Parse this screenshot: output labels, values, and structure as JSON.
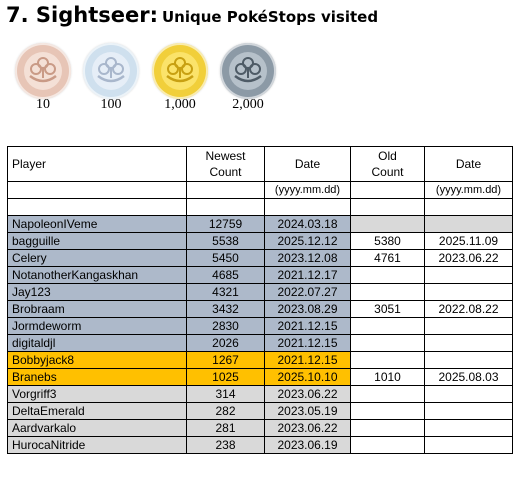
{
  "title": {
    "number_name": "7. Sightseer:",
    "subtitle": "Unique PokéStops visited"
  },
  "medals": [
    {
      "label": "10",
      "tier": "bronze",
      "ring": "#e7c5b6",
      "fill": "#f4e0d6",
      "icon": "#c99a86"
    },
    {
      "label": "100",
      "tier": "silver",
      "ring": "#cfe0ee",
      "fill": "#e6eef7",
      "icon": "#a9b7cc"
    },
    {
      "label": "1,000",
      "tier": "gold",
      "ring": "#f1cf3a",
      "fill": "#fbe36a",
      "icon": "#c8a012"
    },
    {
      "label": "2,000",
      "tier": "platinum",
      "ring": "#8c9aa6",
      "fill": "#b6c1ca",
      "icon": "#4e5b66"
    }
  ],
  "table": {
    "headers": {
      "player": "Player",
      "newest_count_1": "Newest",
      "newest_count_2": "Count",
      "date": "Date",
      "old_count_1": "Old",
      "old_count_2": "Count",
      "date2": "Date"
    },
    "date_format": "(yyyy.mm.dd)",
    "colors": {
      "blue": "#adb9ca",
      "orange": "#ffc000",
      "gray": "#d9d9d9",
      "white": "#ffffff"
    },
    "rows": [
      {
        "player": "NapoleonIVeme",
        "newest": "12759",
        "date": "2024.03.18",
        "old": "",
        "old_date": "",
        "color": "blue",
        "old_color": "gray"
      },
      {
        "player": "bagguille",
        "newest": "5538",
        "date": "2025.12.12",
        "old": "5380",
        "old_date": "2025.11.09",
        "color": "blue",
        "old_color": "white"
      },
      {
        "player": "Celery",
        "newest": "5450",
        "date": "2023.12.08",
        "old": "4761",
        "old_date": "2023.06.22",
        "color": "blue",
        "old_color": "white"
      },
      {
        "player": "NotanotherKangaskhan",
        "newest": "4685",
        "date": "2021.12.17",
        "old": "",
        "old_date": "",
        "color": "blue",
        "old_color": "white"
      },
      {
        "player": "Jay123",
        "newest": "4321",
        "date": "2022.07.27",
        "old": "",
        "old_date": "",
        "color": "blue",
        "old_color": "white"
      },
      {
        "player": "Brobraam",
        "newest": "3432",
        "date": "2023.08.29",
        "old": "3051",
        "old_date": "2022.08.22",
        "color": "blue",
        "old_color": "white"
      },
      {
        "player": "Jormdeworm",
        "newest": "2830",
        "date": "2021.12.15",
        "old": "",
        "old_date": "",
        "color": "blue",
        "old_color": "white"
      },
      {
        "player": "digitaldjl",
        "newest": "2026",
        "date": "2021.12.15",
        "old": "",
        "old_date": "",
        "color": "blue",
        "old_color": "white"
      },
      {
        "player": "Bobbyjack8",
        "newest": "1267",
        "date": "2021.12.15",
        "old": "",
        "old_date": "",
        "color": "orange",
        "old_color": "white"
      },
      {
        "player": "Branebs",
        "newest": "1025",
        "date": "2025.10.10",
        "old": "1010",
        "old_date": "2025.08.03",
        "color": "orange",
        "old_color": "white"
      },
      {
        "player": "Vorgriff3",
        "newest": "314",
        "date": "2023.06.22",
        "old": "",
        "old_date": "",
        "color": "gray",
        "old_color": "white"
      },
      {
        "player": "DeltaEmerald",
        "newest": "282",
        "date": "2023.05.19",
        "old": "",
        "old_date": "",
        "color": "gray",
        "old_color": "white"
      },
      {
        "player": "Aardvarkalo",
        "newest": "281",
        "date": "2023.06.22",
        "old": "",
        "old_date": "",
        "color": "gray",
        "old_color": "white"
      },
      {
        "player": "HurocaNitride",
        "newest": "238",
        "date": "2023.06.19",
        "old": "",
        "old_date": "",
        "color": "gray",
        "old_color": "white"
      }
    ]
  }
}
